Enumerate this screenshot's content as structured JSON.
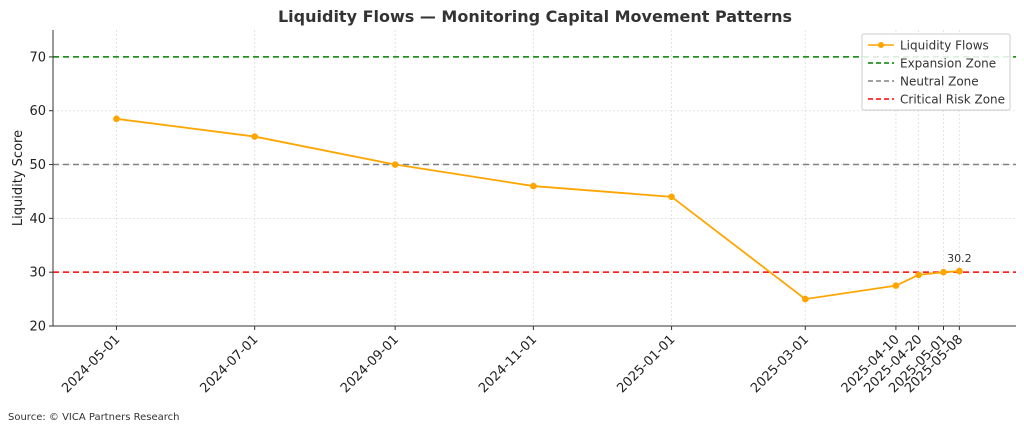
{
  "chart_data": {
    "type": "line",
    "title": "Liquidity Flows — Monitoring Capital Movement Patterns",
    "xlabel": "",
    "ylabel": "Liquidity Score",
    "ylim": [
      20,
      75
    ],
    "yticks": [
      20,
      30,
      40,
      50,
      60,
      70
    ],
    "grid": true,
    "legend_position": "top-right",
    "x": [
      "2024-05-01",
      "2024-07-01",
      "2024-09-01",
      "2024-11-01",
      "2025-01-01",
      "2025-03-01",
      "2025-04-10",
      "2025-04-20",
      "2025-05-01",
      "2025-05-08"
    ],
    "xlim": [
      "2024-04-03",
      "2025-06-02"
    ],
    "series": [
      {
        "name": "Liquidity Flows",
        "color": "#FFA500",
        "marker": "circle",
        "values": [
          58.5,
          55.2,
          50.0,
          46.0,
          44.0,
          25.0,
          27.5,
          29.5,
          30.0,
          30.2
        ]
      }
    ],
    "reference_lines": [
      {
        "name": "Expansion Zone",
        "y": 70,
        "color": "#008000",
        "style": "dashed"
      },
      {
        "name": "Neutral Zone",
        "y": 50,
        "color": "#808080",
        "style": "dashed"
      },
      {
        "name": "Critical Risk Zone",
        "y": 30,
        "color": "#FF0000",
        "style": "dashed"
      }
    ],
    "annotations": [
      {
        "text": "30.2",
        "x": "2025-05-08",
        "y": 30.2
      }
    ]
  },
  "source_text": "Source: © VICA Partners Research"
}
